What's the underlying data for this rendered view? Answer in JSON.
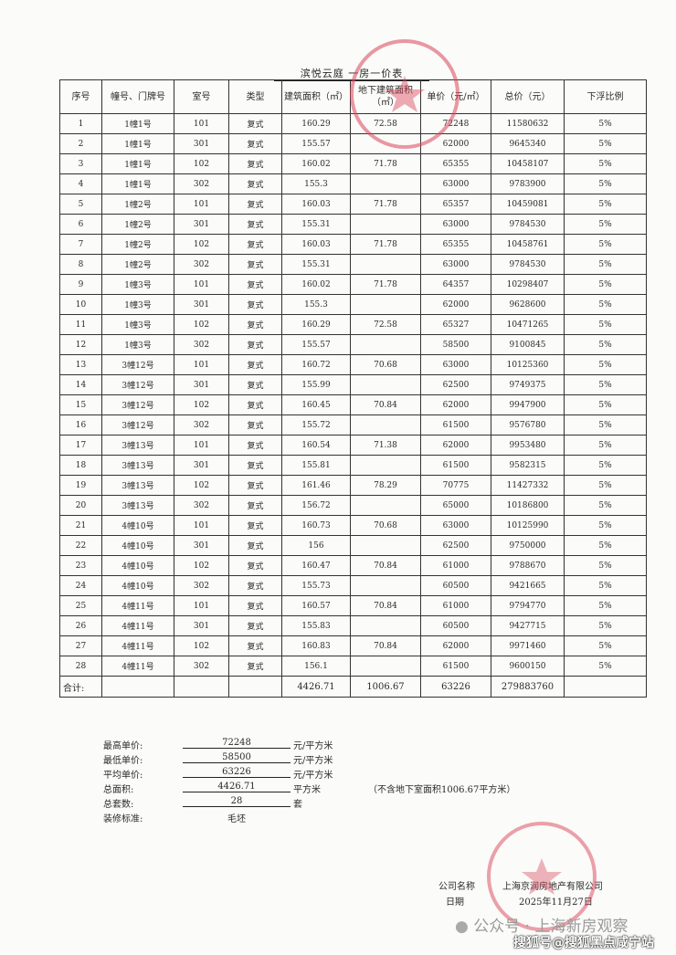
{
  "document": {
    "title": "滨悦云庭  一房一价表",
    "headers": [
      "序号",
      "幢号、门牌号",
      "室号",
      "类型",
      "建筑面积（㎡）",
      "地下建筑面积（㎡）",
      "单价（元/㎡）",
      "总价（元）",
      "下浮比例"
    ],
    "rows": [
      [
        "1",
        "1幢1号",
        "101",
        "复式",
        "160.29",
        "72.58",
        "72248",
        "11580632",
        "5%"
      ],
      [
        "2",
        "1幢1号",
        "301",
        "复式",
        "155.57",
        "",
        "62000",
        "9645340",
        "5%"
      ],
      [
        "3",
        "1幢1号",
        "102",
        "复式",
        "160.02",
        "71.78",
        "65355",
        "10458107",
        "5%"
      ],
      [
        "4",
        "1幢1号",
        "302",
        "复式",
        "155.3",
        "",
        "63000",
        "9783900",
        "5%"
      ],
      [
        "5",
        "1幢2号",
        "101",
        "复式",
        "160.03",
        "71.78",
        "65357",
        "10459081",
        "5%"
      ],
      [
        "6",
        "1幢2号",
        "301",
        "复式",
        "155.31",
        "",
        "63000",
        "9784530",
        "5%"
      ],
      [
        "7",
        "1幢2号",
        "102",
        "复式",
        "160.03",
        "71.78",
        "65355",
        "10458761",
        "5%"
      ],
      [
        "8",
        "1幢2号",
        "302",
        "复式",
        "155.31",
        "",
        "63000",
        "9784530",
        "5%"
      ],
      [
        "9",
        "1幢3号",
        "101",
        "复式",
        "160.02",
        "71.78",
        "64357",
        "10298407",
        "5%"
      ],
      [
        "10",
        "1幢3号",
        "301",
        "复式",
        "155.3",
        "",
        "62000",
        "9628600",
        "5%"
      ],
      [
        "11",
        "1幢3号",
        "102",
        "复式",
        "160.29",
        "72.58",
        "65327",
        "10471265",
        "5%"
      ],
      [
        "12",
        "1幢3号",
        "302",
        "复式",
        "155.57",
        "",
        "58500",
        "9100845",
        "5%"
      ],
      [
        "13",
        "3幢12号",
        "101",
        "复式",
        "160.72",
        "70.68",
        "63000",
        "10125360",
        "5%"
      ],
      [
        "14",
        "3幢12号",
        "301",
        "复式",
        "155.99",
        "",
        "62500",
        "9749375",
        "5%"
      ],
      [
        "15",
        "3幢12号",
        "102",
        "复式",
        "160.45",
        "70.84",
        "62000",
        "9947900",
        "5%"
      ],
      [
        "16",
        "3幢12号",
        "302",
        "复式",
        "155.72",
        "",
        "61500",
        "9576780",
        "5%"
      ],
      [
        "17",
        "3幢13号",
        "101",
        "复式",
        "160.54",
        "71.38",
        "62000",
        "9953480",
        "5%"
      ],
      [
        "18",
        "3幢13号",
        "301",
        "复式",
        "155.81",
        "",
        "61500",
        "9582315",
        "5%"
      ],
      [
        "19",
        "3幢13号",
        "102",
        "复式",
        "161.46",
        "78.29",
        "70775",
        "11427332",
        "5%"
      ],
      [
        "20",
        "3幢13号",
        "302",
        "复式",
        "156.72",
        "",
        "65000",
        "10186800",
        "5%"
      ],
      [
        "21",
        "4幢10号",
        "101",
        "复式",
        "160.73",
        "70.68",
        "63000",
        "10125990",
        "5%"
      ],
      [
        "22",
        "4幢10号",
        "301",
        "复式",
        "156",
        "",
        "62500",
        "9750000",
        "5%"
      ],
      [
        "23",
        "4幢10号",
        "102",
        "复式",
        "160.47",
        "70.84",
        "61000",
        "9788670",
        "5%"
      ],
      [
        "24",
        "4幢10号",
        "302",
        "复式",
        "155.73",
        "",
        "60500",
        "9421665",
        "5%"
      ],
      [
        "25",
        "4幢11号",
        "101",
        "复式",
        "160.57",
        "70.84",
        "61000",
        "9794770",
        "5%"
      ],
      [
        "26",
        "4幢11号",
        "301",
        "复式",
        "155.83",
        "",
        "60500",
        "9427715",
        "5%"
      ],
      [
        "27",
        "4幢11号",
        "102",
        "复式",
        "160.83",
        "70.84",
        "62000",
        "9971460",
        "5%"
      ],
      [
        "28",
        "4幢11号",
        "302",
        "复式",
        "156.1",
        "",
        "61500",
        "9600150",
        "5%"
      ]
    ],
    "total": [
      "合计:",
      "",
      "",
      "",
      "4426.71",
      "1006.67",
      "63226",
      "279883760",
      ""
    ]
  },
  "summary": {
    "max_price": {
      "label": "最高单价:",
      "value": "72248",
      "unit": "元/平方米"
    },
    "min_price": {
      "label": "最低单价:",
      "value": "58500",
      "unit": "元/平方米"
    },
    "avg_price": {
      "label": "平均单价:",
      "value": "63226",
      "unit": "元/平方米"
    },
    "total_area": {
      "label": "总面积:",
      "value": "4426.71",
      "unit": "平方米",
      "note": "（不含地下室面积1006.67平方米）"
    },
    "total_units": {
      "label": "总套数:",
      "value": "28",
      "unit": "套"
    },
    "decoration": {
      "label": "装修标准:",
      "value": "毛坯"
    }
  },
  "company": {
    "name_label": "公司名称",
    "name": "上海京润房地产有限公司",
    "date_label": "日期",
    "date": "2025年11月27日"
  },
  "watermarks": {
    "wechat": "公众号 · 上海新房观察",
    "sohu": "搜狐号@搜狐黑点咸宁站"
  },
  "colors": {
    "stamp": "#d9455a"
  }
}
